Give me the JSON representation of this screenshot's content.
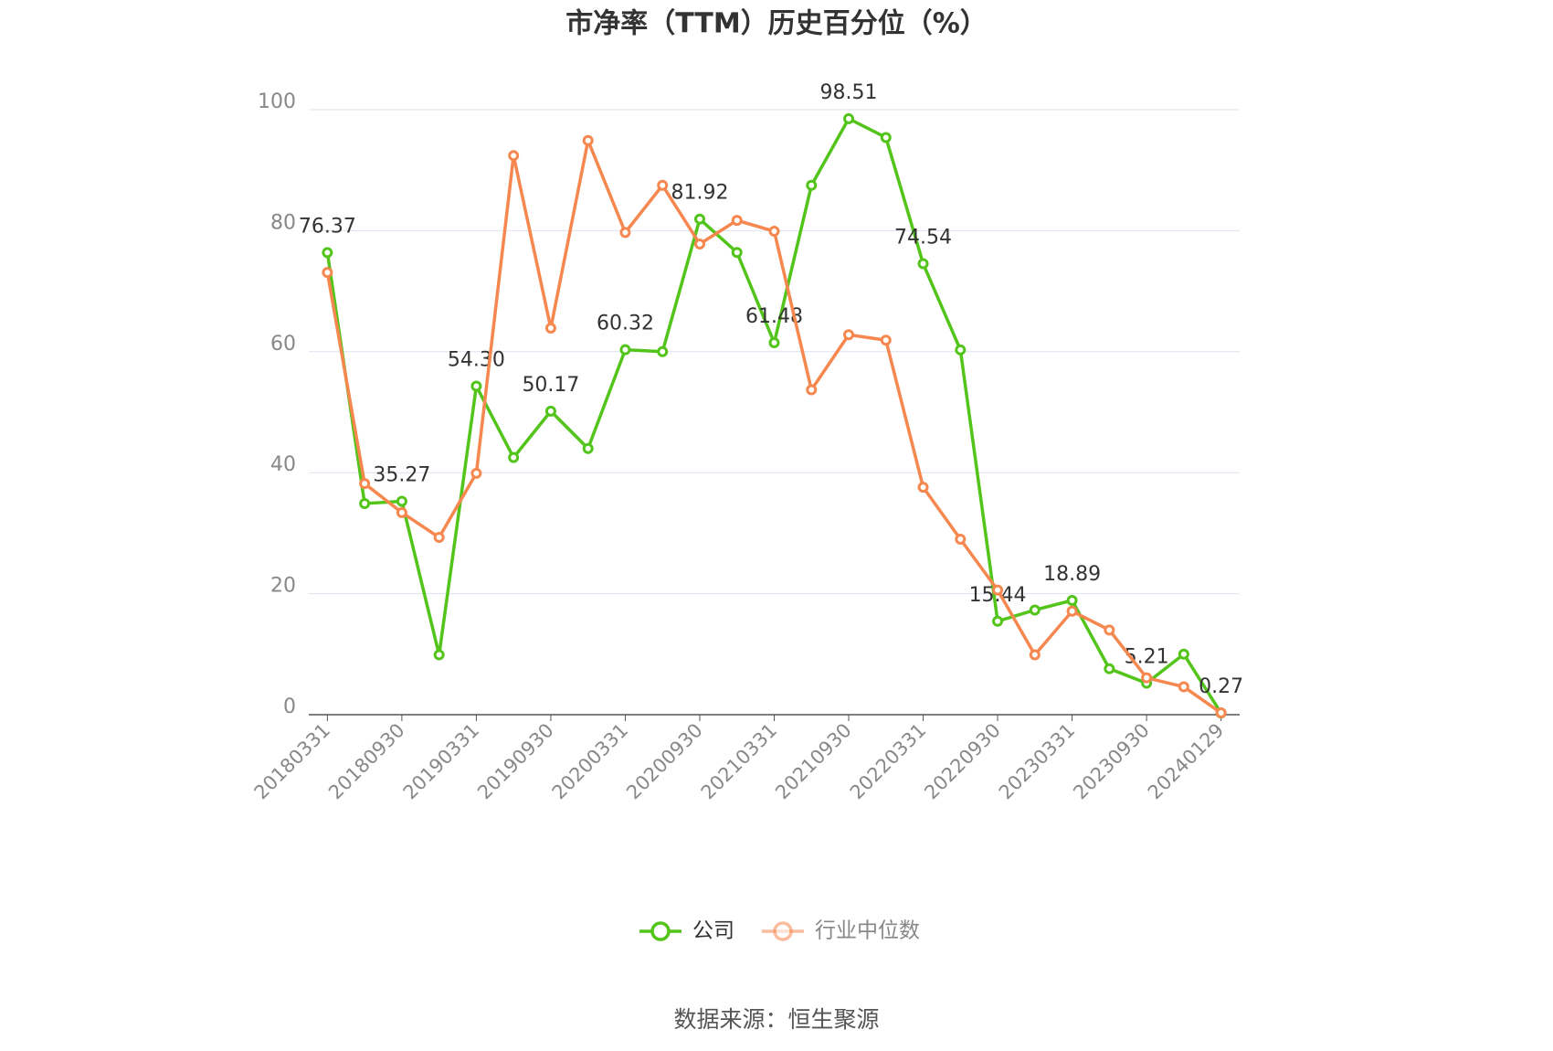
{
  "chart_data": {
    "type": "line",
    "title": "市净率（TTM）历史百分位（%）",
    "categories": [
      "20180331",
      null,
      "20180930",
      null,
      "20190331",
      null,
      "20190930",
      null,
      "20200331",
      null,
      "20200930",
      null,
      "20210331",
      null,
      "20210930",
      null,
      "20220331",
      null,
      "20220930",
      null,
      "20230331",
      null,
      "20230930",
      null,
      "20240129"
    ],
    "series": [
      {
        "name": "公司",
        "color": "#52c41a",
        "values": [
          76.37,
          34.9,
          35.27,
          9.9,
          54.3,
          42.5,
          50.17,
          44.0,
          60.32,
          60.0,
          81.92,
          76.4,
          61.48,
          87.5,
          98.51,
          95.4,
          74.54,
          60.3,
          15.44,
          17.3,
          18.89,
          7.6,
          5.21,
          10.0,
          0.27
        ],
        "value_labels": [
          "76.37",
          null,
          "35.27",
          null,
          "54.30",
          null,
          "50.17",
          null,
          "60.32",
          null,
          "81.92",
          null,
          "61.48",
          null,
          "98.51",
          null,
          "74.54",
          null,
          "15.44",
          null,
          "18.89",
          null,
          "5.21",
          null,
          "0.27"
        ]
      },
      {
        "name": "行业中位数",
        "color": "#f5874f",
        "values": [
          73.1,
          38.2,
          33.4,
          29.3,
          39.9,
          92.4,
          63.9,
          94.9,
          79.7,
          87.5,
          77.8,
          81.7,
          79.9,
          53.7,
          62.8,
          61.9,
          37.6,
          29.0,
          20.6,
          9.9,
          17.1,
          14.0,
          6.1,
          4.6,
          0.3
        ]
      }
    ],
    "ylim": [
      0,
      100
    ],
    "yticks": [
      0,
      20,
      40,
      60,
      80,
      100
    ],
    "grid": true,
    "source": "数据来源：恒生聚源"
  }
}
